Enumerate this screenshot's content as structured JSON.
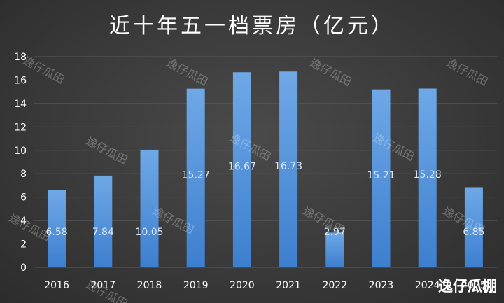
{
  "chart_data": {
    "type": "bar",
    "title": "近十年五一档票房（亿元）",
    "xlabel": "",
    "ylabel": "",
    "categories": [
      "2016",
      "2017",
      "2018",
      "2019",
      "2020",
      "2021",
      "2022",
      "2023",
      "2024",
      "2025"
    ],
    "values": [
      6.58,
      7.84,
      10.05,
      15.27,
      16.67,
      16.73,
      2.97,
      15.21,
      15.28,
      6.85
    ],
    "data_labels": [
      "6.58",
      "7.84",
      "10.05",
      "15.27",
      "16.67",
      "16.73",
      "2.97",
      "15.21",
      "15.28",
      "6.85"
    ],
    "ylim": [
      0,
      18
    ],
    "yticks": [
      "0",
      "2",
      "4",
      "6",
      "8",
      "10",
      "12",
      "14",
      "16",
      "18"
    ],
    "grid": true,
    "legend": "none",
    "colors": {
      "bar_top": "#6fa8e6",
      "bar_bottom": "#3d7fcf",
      "grid": "#5a5a5a",
      "text": "#ffffff",
      "label": "#d8e6f7"
    }
  },
  "watermark_text": "逸仔瓜田",
  "brand_text": "逸仔瓜棚"
}
